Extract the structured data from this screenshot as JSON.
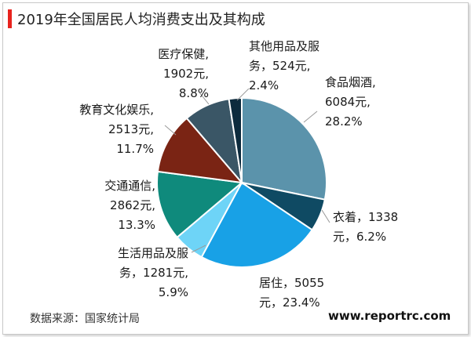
{
  "chart_data": {
    "type": "pie",
    "title": "2019年全国居民人均消费支出及其构成",
    "slices": [
      {
        "name": "食品烟酒",
        "value": 6084,
        "label_lines": [
          "食品烟酒,",
          "6084元,",
          "28.2%"
        ],
        "color": "#5b93ab"
      },
      {
        "name": "衣着",
        "value": 1338,
        "label_lines": [
          "衣着，1338",
          "元，6.2%"
        ],
        "color": "#0f4a63"
      },
      {
        "name": "居住",
        "value": 5055,
        "label_lines": [
          "居住，5055",
          "元，23.4%"
        ],
        "color": "#18a1e6"
      },
      {
        "name": "生活用品及服务",
        "value": 1281,
        "label_lines": [
          "生活用品及服",
          "务，1281元,",
          "5.9%"
        ],
        "color": "#6ed4f7"
      },
      {
        "name": "交通通信",
        "value": 2862,
        "label_lines": [
          "交通通信,",
          "2862元,",
          "13.3%"
        ],
        "color": "#0f8a7c"
      },
      {
        "name": "教育文化娱乐",
        "value": 2513,
        "label_lines": [
          "教育文化娱乐,",
          "2513元,",
          "11.7%"
        ],
        "color": "#7a2414"
      },
      {
        "name": "医疗保健",
        "value": 1902,
        "label_lines": [
          "医疗保健,",
          "1902元,",
          "8.8%"
        ],
        "color": "#3a5666"
      },
      {
        "name": "其他用品及服务",
        "value": 524,
        "label_lines": [
          "其他用品及服",
          "务，524元,",
          "2.4%"
        ],
        "color": "#0d2b3d"
      }
    ]
  },
  "footer": {
    "source": "数据来源：国家统计局",
    "watermark": "www.reportrc.com"
  }
}
